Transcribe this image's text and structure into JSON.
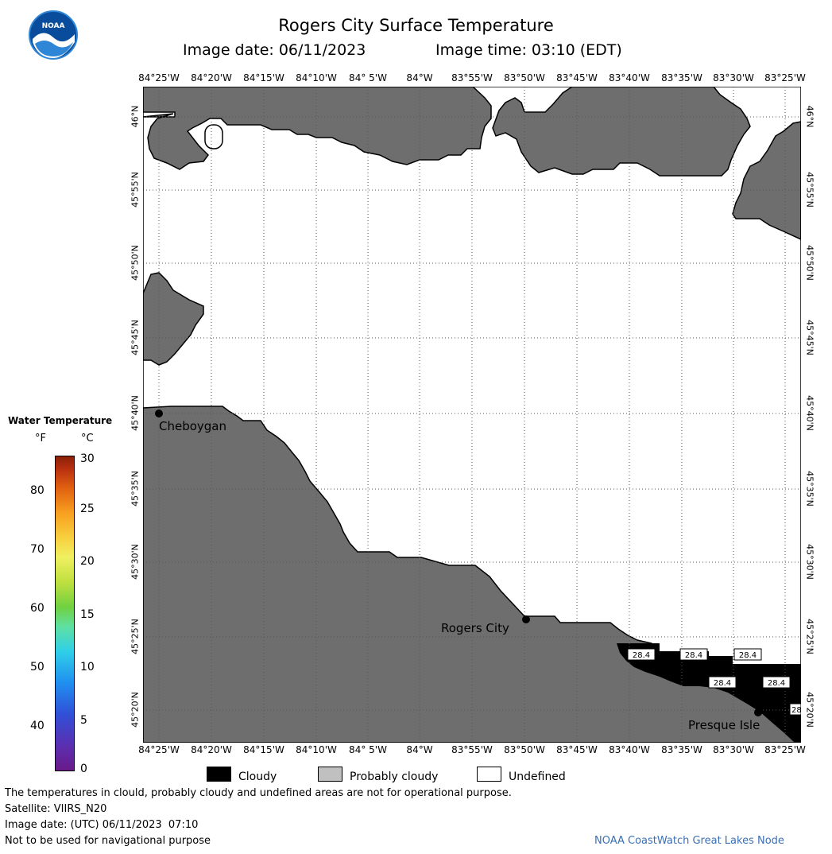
{
  "header": {
    "title": "Rogers City Surface Temperature",
    "image_date": "Image date: 06/11/2023",
    "image_time": "Image time: 03:10 (EDT)"
  },
  "map": {
    "lon_labels": [
      "84°25'W",
      "84°20'W",
      "84°15'W",
      "84°10'W",
      "84° 5'W",
      "84°W",
      "83°55'W",
      "83°50'W",
      "83°45'W",
      "83°40'W",
      "83°35'W",
      "83°30'W",
      "83°25'W"
    ],
    "lat_labels": [
      "46°N",
      "45°55'N",
      "45°50'N",
      "45°45'N",
      "45°40'N",
      "45°35'N",
      "45°30'N",
      "45°25'N",
      "45°20'N"
    ],
    "cities": [
      {
        "name": "Cheboygan"
      },
      {
        "name": "Rogers City"
      },
      {
        "name": "Presque Isle"
      }
    ],
    "temperature_labels": [
      "28.4",
      "28.4",
      "28.4",
      "28.4",
      "28.4",
      "28"
    ],
    "colors": {
      "land": "#6e6e6e",
      "cloudy": "#000000",
      "water_undefined": "#ffffff"
    }
  },
  "legend": {
    "title": "Water Temperature",
    "unit_f": "°F",
    "unit_c": "°C",
    "f_ticks": [
      "80",
      "70",
      "60",
      "50",
      "40"
    ],
    "c_ticks": [
      "30",
      "25",
      "20",
      "15",
      "10",
      "5",
      "0"
    ]
  },
  "key": {
    "cloudy": "Cloudy",
    "probably_cloudy": "Probably cloudy",
    "undefined": "Undefined"
  },
  "footer": {
    "disclaimer": "The temperatures in clould, probably cloudy and undefined areas are not for operational purpose.",
    "satellite": "Satellite: VIIRS_N20",
    "utc_date": "Image date: (UTC) 06/11/2023  07:10",
    "nav_warning": "Not to be used for navigational purpose",
    "credit": "NOAA CoastWatch Great Lakes Node"
  }
}
